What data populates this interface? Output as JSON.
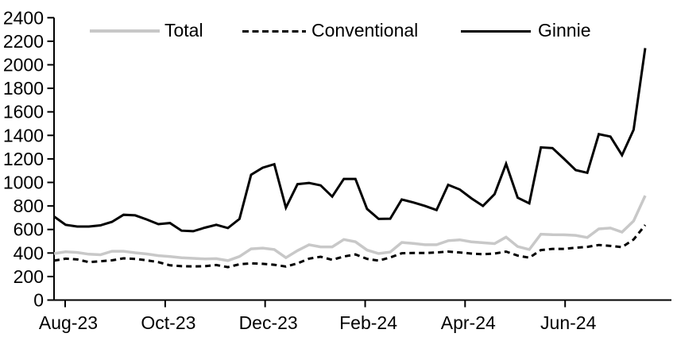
{
  "chart_data": {
    "type": "line",
    "title": "",
    "xlabel": "",
    "ylabel": "",
    "x_unit": "weekly",
    "x_range_note": "weekly points from Aug-2023 through early Aug-2024",
    "ylim": [
      0,
      2400
    ],
    "grid": false,
    "legend_position": "top",
    "y_ticks": [
      0,
      200,
      400,
      600,
      800,
      1000,
      1200,
      1400,
      1600,
      1800,
      2000,
      2200,
      2400
    ],
    "x_tick_labels": [
      "Aug-23",
      "Oct-23",
      "Dec-23",
      "Feb-24",
      "Apr-24",
      "Jun-24"
    ],
    "x_tick_indices": [
      0.96,
      9.59,
      18.21,
      26.84,
      35.46,
      44.09
    ],
    "series": [
      {
        "name": "Total",
        "color": "#c8c8c8",
        "style": "solid",
        "values": [
          395,
          410,
          405,
          390,
          385,
          415,
          415,
          402,
          392,
          378,
          370,
          360,
          355,
          350,
          352,
          335,
          370,
          435,
          442,
          430,
          360,
          420,
          470,
          452,
          452,
          515,
          495,
          425,
          395,
          408,
          490,
          482,
          470,
          470,
          505,
          512,
          495,
          487,
          480,
          535,
          455,
          430,
          560,
          556,
          555,
          550,
          532,
          605,
          612,
          578,
          672,
          888
        ]
      },
      {
        "name": "Conventional",
        "color": "#000000",
        "style": "dashed",
        "values": [
          335,
          352,
          345,
          322,
          330,
          338,
          355,
          350,
          338,
          322,
          295,
          288,
          286,
          288,
          298,
          280,
          305,
          312,
          308,
          300,
          285,
          312,
          352,
          368,
          342,
          370,
          388,
          350,
          335,
          362,
          398,
          400,
          400,
          405,
          412,
          405,
          395,
          390,
          395,
          412,
          378,
          360,
          425,
          435,
          435,
          445,
          452,
          468,
          460,
          450,
          515,
          638
        ]
      },
      {
        "name": "Ginnie",
        "color": "#000000",
        "style": "solid",
        "values": [
          710,
          640,
          625,
          625,
          635,
          665,
          725,
          720,
          685,
          645,
          655,
          590,
          585,
          615,
          640,
          612,
          690,
          1065,
          1125,
          1155,
          785,
          985,
          995,
          975,
          880,
          1030,
          1030,
          775,
          690,
          692,
          855,
          830,
          800,
          765,
          980,
          940,
          865,
          800,
          900,
          1158,
          870,
          822,
          1298,
          1292,
          1200,
          1105,
          1082,
          1410,
          1390,
          1232,
          1448,
          2142
        ]
      }
    ]
  }
}
